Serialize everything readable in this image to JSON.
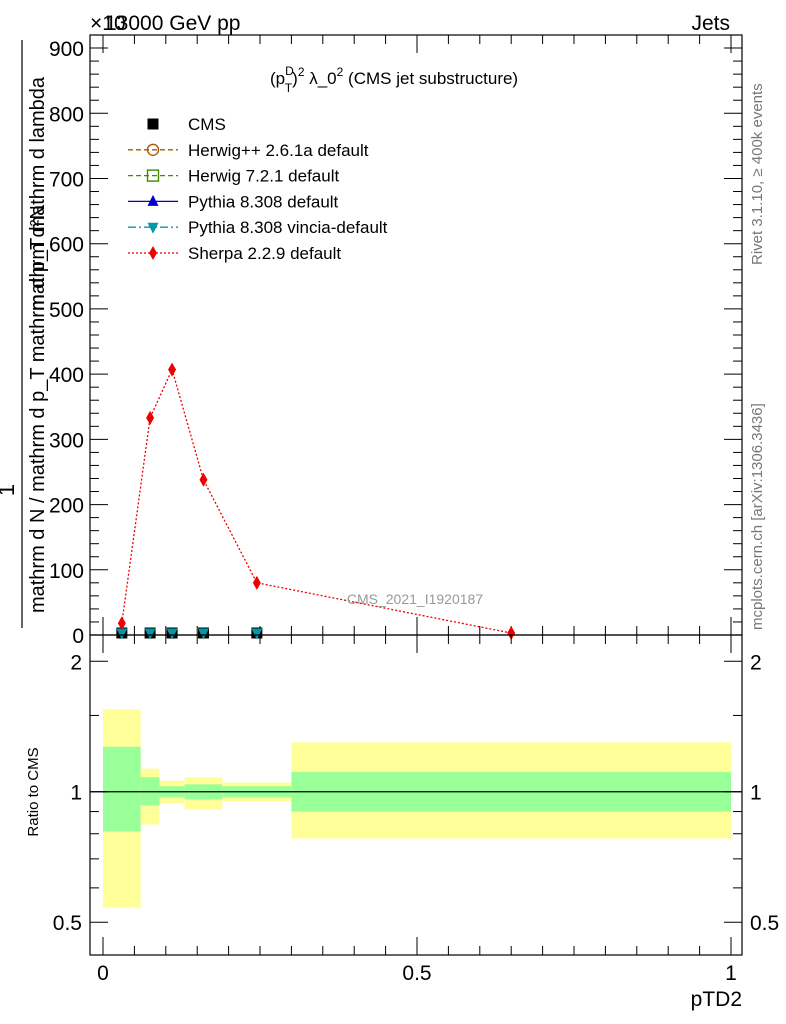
{
  "header": {
    "left": "13000 GeV pp",
    "right": "Jets",
    "exponent": "×10"
  },
  "side_text": {
    "rivet": "Rivet 3.1.10, ≥ 400k events",
    "mcplots": "mcplots.cern.ch [arXiv:1306.3436]"
  },
  "watermark": "CMS_2021_I1920187",
  "chart_data": [
    {
      "type": "line",
      "title": "(p_T^D)^2 λ_0^2 (CMS jet substructure)",
      "title_parts": {
        "a": "(p",
        "sup1": "D",
        "sub1": "T",
        "b": ")",
        "sup2": "2",
        "c": " λ_0",
        "sup3": "2",
        "d": " (CMS jet substructure)"
      },
      "ylabel_top": "mathrm d²N",
      "ylabel_bottom": "mathrm d N / mathrm d p_T mathrm d p_T mathrm d lambda",
      "ylabel_one": "1",
      "ylim": [
        0,
        920
      ],
      "y_ticks": [
        0,
        100,
        200,
        300,
        400,
        500,
        600,
        700,
        800,
        900
      ],
      "y_tick_labels": [
        "0",
        "100",
        "200",
        "300",
        "400",
        "500",
        "600",
        "700",
        "800",
        "900"
      ],
      "xlim": [
        0,
        1
      ],
      "legend_placement": "top-left",
      "series": [
        {
          "name": "CMS",
          "color": "#000000",
          "marker": "square-filled",
          "x": [
            0.03,
            0.075,
            0.11,
            0.16,
            0.245
          ],
          "values": [
            0,
            0,
            0,
            0,
            0
          ]
        },
        {
          "name": "Herwig++ 2.6.1a default",
          "color": "#a85a00",
          "marker": "circle-open",
          "x": [],
          "values": []
        },
        {
          "name": "Herwig 7.2.1 default",
          "color": "#3b8c00",
          "marker": "square-open",
          "x": [],
          "values": []
        },
        {
          "name": "Pythia 8.308 default",
          "color": "#0000cc",
          "marker": "triangle-up",
          "x": [],
          "values": []
        },
        {
          "name": "Pythia 8.308 vincia-default",
          "color": "#0099aa",
          "marker": "triangle-down",
          "x": [
            0.03,
            0.075,
            0.11,
            0.16,
            0.245
          ],
          "values": [
            0,
            0,
            0,
            0,
            0
          ]
        },
        {
          "name": "Sherpa 2.2.9 default",
          "color": "#ee0000",
          "marker": "diamond",
          "x": [
            0.03,
            0.075,
            0.11,
            0.16,
            0.245,
            0.65
          ],
          "values": [
            18,
            333,
            407,
            238,
            80,
            3
          ]
        }
      ]
    },
    {
      "type": "area",
      "ylabel": "Ratio to CMS",
      "log_scale": true,
      "ylim": [
        0.42,
        2.3
      ],
      "y_ticks": [
        0.5,
        1,
        2
      ],
      "y_tick_labels": [
        "0.5",
        "1",
        "2"
      ],
      "xlim": [
        0,
        1
      ],
      "x_ticks": [
        0,
        0.5,
        1
      ],
      "x_tick_labels": [
        "0",
        "0.5",
        "1"
      ],
      "xlabel": "pTD2",
      "bands": [
        {
          "x0": 0.0,
          "x1": 0.06,
          "green": [
            0.81,
            1.27
          ],
          "yellow": [
            0.54,
            1.55
          ]
        },
        {
          "x0": 0.06,
          "x1": 0.09,
          "green": [
            0.93,
            1.08
          ],
          "yellow": [
            0.84,
            1.13
          ]
        },
        {
          "x0": 0.09,
          "x1": 0.13,
          "green": [
            0.97,
            1.03
          ],
          "yellow": [
            0.94,
            1.06
          ]
        },
        {
          "x0": 0.13,
          "x1": 0.19,
          "green": [
            0.96,
            1.04
          ],
          "yellow": [
            0.91,
            1.08
          ]
        },
        {
          "x0": 0.19,
          "x1": 0.3,
          "green": [
            0.97,
            1.03
          ],
          "yellow": [
            0.95,
            1.05
          ]
        },
        {
          "x0": 0.3,
          "x1": 1.0,
          "green": [
            0.9,
            1.11
          ],
          "yellow": [
            0.78,
            1.3
          ]
        }
      ],
      "colors": {
        "green": "#99ff99",
        "yellow": "#ffff99"
      }
    }
  ]
}
